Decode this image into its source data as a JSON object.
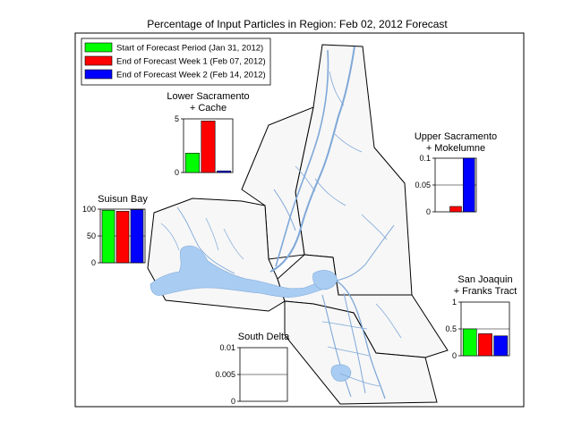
{
  "figure_title": "Percentage of Input Particles in Region: Feb 02, 2012 Forecast",
  "legend": [
    {
      "label": "Start of Forecast Period (Jan 31, 2012)",
      "color": "#00ff00"
    },
    {
      "label": "End of Forecast Week 1 (Feb 07, 2012)",
      "color": "#ff0000"
    },
    {
      "label": "End of Forecast Week 2 (Feb 14, 2012)",
      "color": "#0000ff"
    }
  ],
  "chart_data": [
    {
      "type": "bar",
      "title": "Lower Sacramento\n+ Cache",
      "series_order": [
        "start",
        "week1",
        "week2"
      ],
      "values": [
        1.8,
        4.8,
        0.15
      ],
      "ylim": [
        0,
        5
      ],
      "yticks": [
        "5",
        "0"
      ],
      "ytick_values": [
        5,
        0
      ],
      "grid": false
    },
    {
      "type": "bar",
      "title": "Upper Sacramento\n+ Mokelumne",
      "series_order": [
        "start",
        "week1",
        "week2"
      ],
      "values": [
        0.0,
        0.01,
        0.1
      ],
      "ylim": [
        0,
        0.1
      ],
      "yticks": [
        "0.1",
        "0.05",
        "0"
      ],
      "ytick_values": [
        0.1,
        0.05,
        0
      ],
      "grid": false
    },
    {
      "type": "bar",
      "title": "Suisun Bay",
      "series_order": [
        "start",
        "week1",
        "week2"
      ],
      "values": [
        98,
        96,
        99
      ],
      "ylim": [
        0,
        100
      ],
      "yticks": [
        "100",
        "50",
        "0"
      ],
      "ytick_values": [
        100,
        50,
        0
      ],
      "grid": false
    },
    {
      "type": "bar",
      "title": "San Joaquin\n+ Franks Tract",
      "series_order": [
        "start",
        "week1",
        "week2"
      ],
      "values": [
        0.5,
        0.41,
        0.37
      ],
      "ylim": [
        0,
        1
      ],
      "yticks": [
        "1",
        "0.5",
        "0"
      ],
      "ytick_values": [
        1,
        0.5,
        0
      ],
      "grid": false
    },
    {
      "type": "bar",
      "title": "South Delta",
      "series_order": [
        "start",
        "week1",
        "week2"
      ],
      "values": [
        0,
        0,
        0
      ],
      "ylim": [
        0,
        0.01
      ],
      "yticks": [
        "0.01",
        "0.005",
        "0"
      ],
      "ytick_values": [
        0.01,
        0.005,
        0
      ],
      "grid": false
    }
  ],
  "colors": {
    "water": "#a9cdf2",
    "land": "#f7f7f7",
    "outline": "#000000"
  }
}
